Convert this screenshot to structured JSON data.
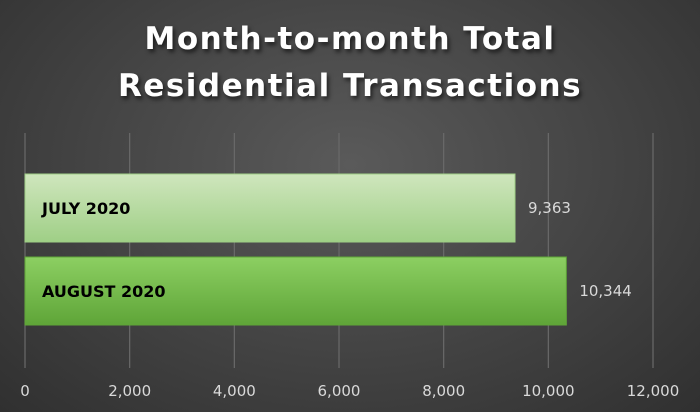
{
  "chart_data": {
    "type": "bar",
    "orientation": "horizontal",
    "title_lines": [
      "Month-to-month Total",
      "Residential Transactions"
    ],
    "categories": [
      "JULY 2020",
      "AUGUST 2020"
    ],
    "values": [
      9363,
      10344
    ],
    "value_labels": [
      "9,363",
      "10,344"
    ],
    "xlim": [
      0,
      12000
    ],
    "x_ticks": [
      0,
      2000,
      4000,
      6000,
      8000,
      10000,
      12000
    ],
    "x_tick_labels": [
      "0",
      "2,000",
      "4,000",
      "6,000",
      "8,000",
      "10,000",
      "12,000"
    ],
    "gridlines": "vertical",
    "legend": "none",
    "colors": {
      "background": "#404040",
      "gridline": "#6a6a6a",
      "text": "#ffffff",
      "label_text": "#d9d9d9",
      "category_text": "#000000",
      "bar_july_light": "#cfe6bd",
      "bar_july_dark": "#9fcf86",
      "bar_august_light": "#8ccf62",
      "bar_august_dark": "#5fa538"
    }
  }
}
